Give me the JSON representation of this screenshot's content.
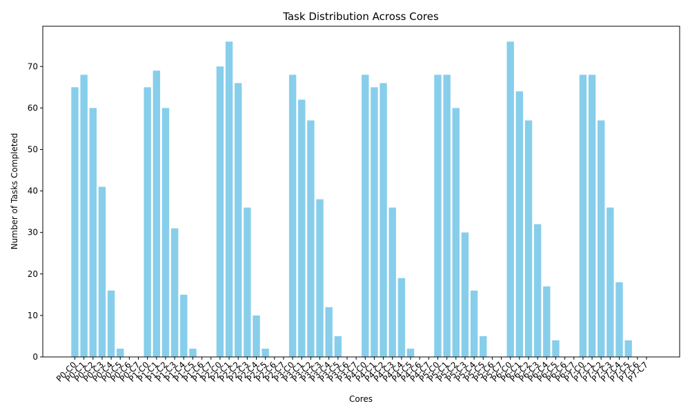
{
  "chart_data": {
    "type": "bar",
    "title": "Task Distribution Across Cores",
    "xlabel": "Cores",
    "ylabel": "Number of Tasks Completed",
    "ylim": [
      0,
      80
    ],
    "yticks": [
      0,
      10,
      20,
      30,
      40,
      50,
      60,
      70
    ],
    "grid": false,
    "bar_color": "#87ceeb",
    "categories": [
      "P0-C0",
      "P0-C1",
      "P0-C2",
      "P0-C3",
      "P0-C4",
      "P0-C5",
      "P0-C6",
      "P0-C7",
      "P1-C0",
      "P1-C1",
      "P1-C2",
      "P1-C3",
      "P1-C4",
      "P1-C5",
      "P1-C6",
      "P1-C7",
      "P2-C0",
      "P2-C1",
      "P2-C2",
      "P2-C3",
      "P2-C4",
      "P2-C5",
      "P2-C6",
      "P2-C7",
      "P3-C0",
      "P3-C1",
      "P3-C2",
      "P3-C3",
      "P3-C4",
      "P3-C5",
      "P3-C6",
      "P3-C7",
      "P4-C0",
      "P4-C1",
      "P4-C2",
      "P4-C3",
      "P4-C4",
      "P4-C5",
      "P4-C6",
      "P4-C7",
      "P5-C0",
      "P5-C1",
      "P5-C2",
      "P5-C3",
      "P5-C4",
      "P5-C5",
      "P5-C6",
      "P5-C7",
      "P6-C0",
      "P6-C1",
      "P6-C2",
      "P6-C3",
      "P6-C4",
      "P6-C5",
      "P6-C6",
      "P6-C7",
      "P7-C0",
      "P7-C1",
      "P7-C2",
      "P7-C3",
      "P7-C4",
      "P7-C5",
      "P7-C6",
      "P7-C7"
    ],
    "values": [
      65,
      68,
      60,
      41,
      16,
      2,
      0,
      0,
      65,
      69,
      60,
      31,
      15,
      2,
      0,
      0,
      70,
      76,
      66,
      36,
      10,
      2,
      0,
      0,
      68,
      62,
      57,
      38,
      12,
      5,
      0,
      0,
      68,
      65,
      66,
      36,
      19,
      2,
      0,
      0,
      68,
      68,
      60,
      30,
      16,
      5,
      0,
      0,
      76,
      64,
      57,
      32,
      17,
      4,
      0,
      0,
      68,
      68,
      57,
      36,
      18,
      4,
      0,
      0
    ]
  }
}
